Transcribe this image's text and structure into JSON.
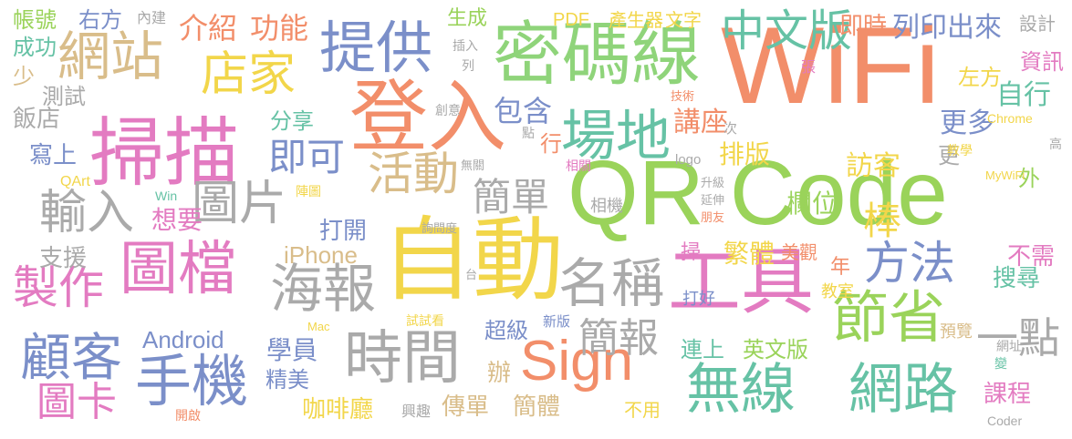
{
  "words": [
    {
      "text": "WiFi",
      "color": "#f28e6a"
    },
    {
      "text": "QR Code",
      "color": "#9ad35a"
    },
    {
      "text": "自動",
      "color": "#f2d64a"
    },
    {
      "text": "登入",
      "color": "#f28e6a"
    },
    {
      "text": "掃描",
      "color": "#e37bc1"
    },
    {
      "text": "密碼線",
      "color": "#8fd47a"
    },
    {
      "text": "工具",
      "color": "#e37bc1"
    },
    {
      "text": "提供",
      "color": "#7b8fc9"
    },
    {
      "text": "網站",
      "color": "#d9bd8a"
    },
    {
      "text": "Sign",
      "color": "#f28e6a"
    },
    {
      "text": "圖檔",
      "color": "#e37bc1"
    },
    {
      "text": "時間",
      "color": "#aaaaaa"
    },
    {
      "text": "手機",
      "color": "#7b8fc9"
    },
    {
      "text": "無線",
      "color": "#66c2a5"
    },
    {
      "text": "網路",
      "color": "#66c2a5"
    },
    {
      "text": "節省",
      "color": "#9ad35a"
    },
    {
      "text": "場地",
      "color": "#66c2a5"
    },
    {
      "text": "海報",
      "color": "#aaaaaa"
    },
    {
      "text": "名稱",
      "color": "#aaaaaa"
    },
    {
      "text": "活動",
      "color": "#d9bd8a"
    },
    {
      "text": "店家",
      "color": "#f2d64a"
    },
    {
      "text": "中文版",
      "color": "#66c2a5"
    },
    {
      "text": "顧客",
      "color": "#7b8fc9"
    },
    {
      "text": "圖片",
      "color": "#aaaaaa"
    },
    {
      "text": "輸入",
      "color": "#aaaaaa"
    },
    {
      "text": "製作",
      "color": "#e37bc1"
    },
    {
      "text": "方法",
      "color": "#7b8fc9"
    },
    {
      "text": "簡單",
      "color": "#aaaaaa"
    },
    {
      "text": "即可",
      "color": "#7b8fc9"
    },
    {
      "text": "圖卡",
      "color": "#e37bc1"
    },
    {
      "text": "一點",
      "color": "#aaaaaa"
    },
    {
      "text": "棒",
      "color": "#f2d64a"
    },
    {
      "text": "簡報",
      "color": "#aaaaaa"
    },
    {
      "text": "Android",
      "color": "#7b8fc9"
    },
    {
      "text": "iPhone",
      "color": "#d9bd8a"
    },
    {
      "text": "介紹",
      "color": "#f28e6a"
    },
    {
      "text": "功能",
      "color": "#f28e6a"
    },
    {
      "text": "帳號",
      "color": "#9ad35a"
    },
    {
      "text": "右方",
      "color": "#7b8fc9"
    },
    {
      "text": "內建",
      "color": "#aaaaaa"
    },
    {
      "text": "生成",
      "color": "#9ad35a"
    },
    {
      "text": "PDF",
      "color": "#f2d64a"
    },
    {
      "text": "產生器",
      "color": "#f2d64a"
    },
    {
      "text": "文字",
      "color": "#f2d64a"
    },
    {
      "text": "即時",
      "color": "#f28e6a"
    },
    {
      "text": "設計",
      "color": "#aaaaaa"
    },
    {
      "text": "列印出來",
      "color": "#7b8fc9"
    },
    {
      "text": "成功",
      "color": "#66c2a5"
    },
    {
      "text": "少",
      "color": "#d9bd8a"
    },
    {
      "text": "測試",
      "color": "#aaaaaa"
    },
    {
      "text": "飯店",
      "color": "#aaaaaa"
    },
    {
      "text": "寫上",
      "color": "#7b8fc9"
    },
    {
      "text": "QArt",
      "color": "#f2d64a"
    },
    {
      "text": "支援",
      "color": "#aaaaaa"
    },
    {
      "text": "分享",
      "color": "#66c2a5"
    },
    {
      "text": "包含",
      "color": "#7b8fc9"
    },
    {
      "text": "講座",
      "color": "#f28e6a"
    },
    {
      "text": "排版",
      "color": "#f2d64a"
    },
    {
      "text": "訪客",
      "color": "#f2d64a"
    },
    {
      "text": "更多",
      "color": "#7b8fc9"
    },
    {
      "text": "自行",
      "color": "#66c2a5"
    },
    {
      "text": "資訊",
      "color": "#e37bc1"
    },
    {
      "text": "左方",
      "color": "#f2d64a"
    },
    {
      "text": "欄位",
      "color": "#9ad35a"
    },
    {
      "text": "想要",
      "color": "#e37bc1"
    },
    {
      "text": "打開",
      "color": "#7b8fc9"
    },
    {
      "text": "學員",
      "color": "#7b8fc9"
    },
    {
      "text": "精美",
      "color": "#7b8fc9"
    },
    {
      "text": "咖啡廳",
      "color": "#f2d64a"
    },
    {
      "text": "傳單",
      "color": "#d9bd8a"
    },
    {
      "text": "簡體",
      "color": "#d9bd8a"
    },
    {
      "text": "超級",
      "color": "#7b8fc9"
    },
    {
      "text": "繁體",
      "color": "#f2d64a"
    },
    {
      "text": "美觀",
      "color": "#f28e6a"
    },
    {
      "text": "連上",
      "color": "#66c2a5"
    },
    {
      "text": "英文版",
      "color": "#9ad35a"
    },
    {
      "text": "不需",
      "color": "#e37bc1"
    },
    {
      "text": "搜尋",
      "color": "#66c2a5"
    },
    {
      "text": "課程",
      "color": "#e37bc1"
    },
    {
      "text": "不用",
      "color": "#f2d64a"
    },
    {
      "text": "年",
      "color": "#f28e6a"
    },
    {
      "text": "掃",
      "color": "#e37bc1"
    },
    {
      "text": "辦",
      "color": "#d9bd8a"
    },
    {
      "text": "行",
      "color": "#f28e6a"
    },
    {
      "text": "更",
      "color": "#aaaaaa"
    },
    {
      "text": "外",
      "color": "#9ad35a"
    },
    {
      "text": "教室",
      "color": "#f2d64a"
    },
    {
      "text": "預覽",
      "color": "#d9bd8a"
    },
    {
      "text": "網址",
      "color": "#aaaaaa"
    },
    {
      "text": "變",
      "color": "#66c2a5"
    },
    {
      "text": "Coder",
      "color": "#aaaaaa"
    },
    {
      "text": "Chrome",
      "color": "#f2d64a"
    },
    {
      "text": "MyWiFi",
      "color": "#f2d64a"
    },
    {
      "text": "logo",
      "color": "#aaaaaa"
    },
    {
      "text": "次",
      "color": "#aaaaaa"
    },
    {
      "text": "張",
      "color": "#e37bc1"
    },
    {
      "text": "技術",
      "color": "#f28e6a"
    },
    {
      "text": "創意",
      "color": "#aaaaaa"
    },
    {
      "text": "點",
      "color": "#aaaaaa"
    },
    {
      "text": "教學",
      "color": "#f2d64a"
    },
    {
      "text": "高",
      "color": "#aaaaaa"
    },
    {
      "text": "相關",
      "color": "#e37bc1"
    },
    {
      "text": "無關",
      "color": "#aaaaaa"
    },
    {
      "text": "相機",
      "color": "#aaaaaa"
    },
    {
      "text": "升級",
      "color": "#aaaaaa"
    },
    {
      "text": "延伸",
      "color": "#aaaaaa"
    },
    {
      "text": "朋友",
      "color": "#f28e6a"
    },
    {
      "text": "打好",
      "color": "#7b8fc9"
    },
    {
      "text": "陣圖",
      "color": "#f2d64a"
    },
    {
      "text": "詢問度",
      "color": "#aaaaaa"
    },
    {
      "text": "台",
      "color": "#aaaaaa"
    },
    {
      "text": "Win",
      "color": "#66c2a5"
    },
    {
      "text": "插入",
      "color": "#aaaaaa"
    },
    {
      "text": "列",
      "color": "#aaaaaa"
    },
    {
      "text": "Mac",
      "color": "#f2d64a"
    },
    {
      "text": "試試看",
      "color": "#f2d64a"
    },
    {
      "text": "新版",
      "color": "#7b8fc9"
    },
    {
      "text": "興趣",
      "color": "#aaaaaa"
    },
    {
      "text": "開啟",
      "color": "#f28e6a"
    }
  ]
}
